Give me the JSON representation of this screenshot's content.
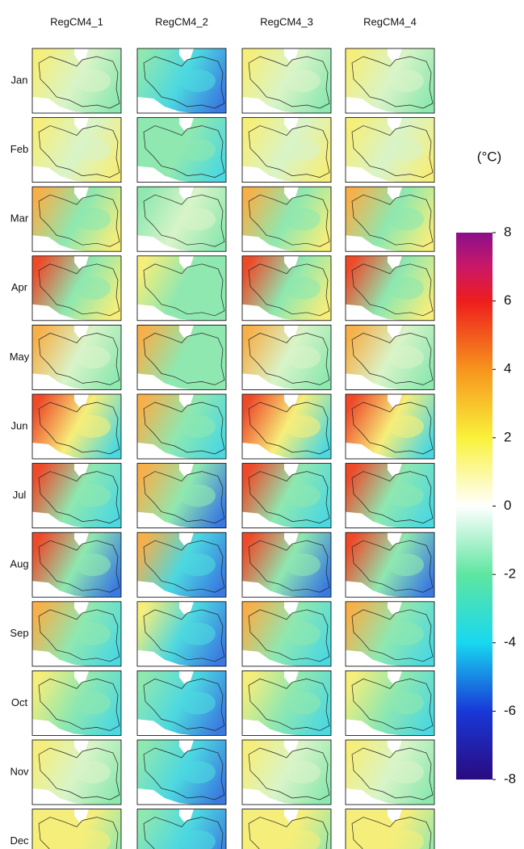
{
  "columns": [
    "RegCM4_1",
    "RegCM4_2",
    "RegCM4_3",
    "RegCM4_4"
  ],
  "rows": [
    "Jan",
    "Feb",
    "Mar",
    "Apr",
    "May",
    "Jun",
    "Jul",
    "Aug",
    "Sep",
    "Oct",
    "Nov",
    "Dec"
  ],
  "colorbar": {
    "label": "(°C)",
    "lim": [
      -8,
      8
    ],
    "ticks": [
      -8,
      -6,
      -4,
      -2,
      0,
      2,
      4,
      6,
      8
    ]
  }
}
